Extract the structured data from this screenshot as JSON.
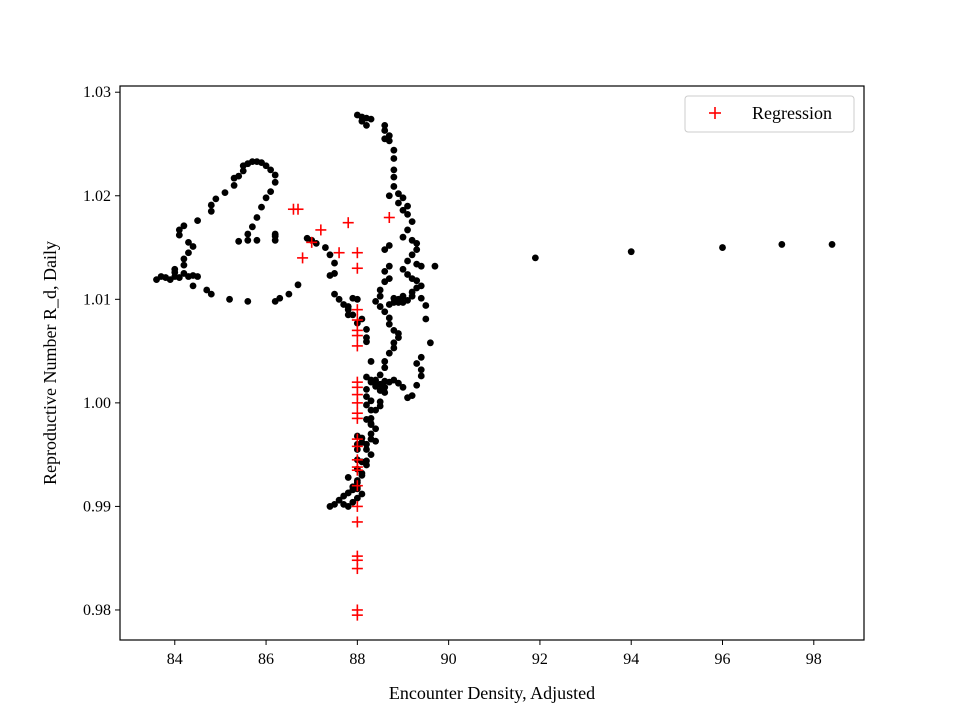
{
  "chart_data": {
    "type": "scatter",
    "title": "",
    "xlabel": "Encounter Density, Adjusted",
    "ylabel": "Reproductive Number R_d, Daily",
    "xlim": [
      82.8,
      99.1
    ],
    "ylim": [
      0.9771,
      1.0306
    ],
    "xticks": [
      84,
      86,
      88,
      90,
      92,
      94,
      96,
      98
    ],
    "yticks": [
      0.98,
      0.99,
      1.0,
      1.01,
      1.02,
      1.03
    ],
    "ytick_labels": [
      "0.98",
      "0.99",
      "1.00",
      "1.01",
      "1.02",
      "1.03"
    ],
    "grid": false,
    "legend_position": "top-right",
    "series": [
      {
        "name": "",
        "marker": "circle",
        "color": "#000000",
        "points": [
          [
            83.6,
            1.0119
          ],
          [
            83.7,
            1.0122
          ],
          [
            83.8,
            1.0121
          ],
          [
            83.9,
            1.0119
          ],
          [
            84.0,
            1.0122
          ],
          [
            84.0,
            1.0129
          ],
          [
            84.0,
            1.0126
          ],
          [
            84.1,
            1.0121
          ],
          [
            84.2,
            1.0125
          ],
          [
            84.3,
            1.0122
          ],
          [
            84.4,
            1.0123
          ],
          [
            84.5,
            1.0122
          ],
          [
            84.4,
            1.0113
          ],
          [
            84.2,
            1.0133
          ],
          [
            84.2,
            1.0139
          ],
          [
            84.3,
            1.0145
          ],
          [
            84.4,
            1.0151
          ],
          [
            84.3,
            1.0155
          ],
          [
            84.1,
            1.0162
          ],
          [
            84.1,
            1.0167
          ],
          [
            84.2,
            1.0171
          ],
          [
            84.5,
            1.0176
          ],
          [
            84.8,
            1.0185
          ],
          [
            84.8,
            1.0191
          ],
          [
            84.9,
            1.0197
          ],
          [
            85.1,
            1.0203
          ],
          [
            85.3,
            1.021
          ],
          [
            85.3,
            1.0217
          ],
          [
            85.4,
            1.0219
          ],
          [
            85.5,
            1.0224
          ],
          [
            85.5,
            1.0229
          ],
          [
            85.6,
            1.0231
          ],
          [
            85.7,
            1.0233
          ],
          [
            85.8,
            1.0233
          ],
          [
            85.9,
            1.0232
          ],
          [
            86.0,
            1.0229
          ],
          [
            86.1,
            1.0225
          ],
          [
            86.2,
            1.022
          ],
          [
            86.2,
            1.0213
          ],
          [
            86.1,
            1.0204
          ],
          [
            86.0,
            1.0198
          ],
          [
            85.9,
            1.0189
          ],
          [
            85.8,
            1.0179
          ],
          [
            85.7,
            1.017
          ],
          [
            85.6,
            1.0163
          ],
          [
            85.8,
            1.0157
          ],
          [
            85.6,
            1.0157
          ],
          [
            85.4,
            1.0156
          ],
          [
            86.2,
            1.0163
          ],
          [
            86.2,
            1.0161
          ],
          [
            86.2,
            1.0157
          ],
          [
            84.7,
            1.0109
          ],
          [
            84.8,
            1.0105
          ],
          [
            85.2,
            1.01
          ],
          [
            85.6,
            1.0098
          ],
          [
            86.2,
            1.0098
          ],
          [
            86.3,
            1.0101
          ],
          [
            86.5,
            1.0105
          ],
          [
            86.7,
            1.0114
          ],
          [
            86.9,
            1.0159
          ],
          [
            87.0,
            1.0157
          ],
          [
            87.1,
            1.0154
          ],
          [
            87.3,
            1.015
          ],
          [
            87.4,
            1.0143
          ],
          [
            87.5,
            1.0135
          ],
          [
            87.5,
            1.0125
          ],
          [
            87.4,
            1.0123
          ],
          [
            87.5,
            1.0105
          ],
          [
            87.6,
            1.01
          ],
          [
            87.7,
            1.0095
          ],
          [
            87.8,
            1.009
          ],
          [
            87.8,
            1.0085
          ],
          [
            87.9,
            1.0085
          ],
          [
            87.8,
            1.0093
          ],
          [
            87.9,
            1.0101
          ],
          [
            88.0,
            1.01
          ],
          [
            88.0,
            1.0077
          ],
          [
            88.1,
            1.0081
          ],
          [
            88.2,
            1.0071
          ],
          [
            88.2,
            1.0063
          ],
          [
            88.2,
            1.0059
          ],
          [
            88.3,
            1.004
          ],
          [
            88.2,
            1.0025
          ],
          [
            88.3,
            1.0022
          ],
          [
            88.4,
            1.0018
          ],
          [
            88.2,
            1.0013
          ],
          [
            88.2,
            1.0006
          ],
          [
            88.3,
            1.0002
          ],
          [
            88.2,
            0.9998
          ],
          [
            88.3,
            0.9993
          ],
          [
            88.2,
            0.9984
          ],
          [
            88.3,
            0.9979
          ],
          [
            88.4,
            0.9975
          ],
          [
            88.3,
            0.997
          ],
          [
            88.3,
            0.9965
          ],
          [
            88.2,
            0.996
          ],
          [
            88.2,
            0.9955
          ],
          [
            88.3,
            0.995
          ],
          [
            88.2,
            0.9944
          ],
          [
            88.1,
            0.9943
          ],
          [
            88.2,
            0.994
          ],
          [
            88.1,
            0.9932
          ],
          [
            88.0,
            0.9925
          ],
          [
            88.0,
            0.9919
          ],
          [
            87.9,
            0.9916
          ],
          [
            87.8,
            0.9913
          ],
          [
            87.7,
            0.991
          ],
          [
            87.6,
            0.9906
          ],
          [
            87.5,
            0.9902
          ],
          [
            87.4,
            0.99
          ],
          [
            87.7,
            0.9902
          ],
          [
            87.8,
            0.99
          ],
          [
            87.9,
            0.9904
          ],
          [
            88.0,
            0.9908
          ],
          [
            88.1,
            0.9912
          ],
          [
            88.0,
            0.9917
          ],
          [
            88.0,
            0.9923
          ],
          [
            88.1,
            0.993
          ],
          [
            88.0,
            0.9936
          ],
          [
            88.0,
            0.9945
          ],
          [
            88.0,
            0.9955
          ],
          [
            88.0,
            0.996
          ],
          [
            88.1,
            0.9962
          ],
          [
            88.1,
            0.9966
          ],
          [
            88.0,
            0.9968
          ],
          [
            87.8,
            0.9928
          ],
          [
            87.9,
            0.9919
          ],
          [
            88.0,
            1.0278
          ],
          [
            88.1,
            1.0276
          ],
          [
            88.2,
            1.0275
          ],
          [
            88.3,
            1.0274
          ],
          [
            88.1,
            1.0272
          ],
          [
            88.2,
            1.0268
          ],
          [
            88.6,
            1.0268
          ],
          [
            88.6,
            1.0263
          ],
          [
            88.7,
            1.0258
          ],
          [
            88.6,
            1.0255
          ],
          [
            88.7,
            1.0253
          ],
          [
            88.8,
            1.0244
          ],
          [
            88.8,
            1.0236
          ],
          [
            88.8,
            1.0225
          ],
          [
            88.8,
            1.0218
          ],
          [
            88.8,
            1.0209
          ],
          [
            88.7,
            1.02
          ],
          [
            88.9,
            1.0202
          ],
          [
            89.0,
            1.0198
          ],
          [
            88.9,
            1.0193
          ],
          [
            89.1,
            1.019
          ],
          [
            89.0,
            1.0186
          ],
          [
            89.1,
            1.0182
          ],
          [
            89.2,
            1.0175
          ],
          [
            89.1,
            1.0167
          ],
          [
            89.0,
            1.016
          ],
          [
            89.2,
            1.0157
          ],
          [
            89.3,
            1.0154
          ],
          [
            89.3,
            1.0148
          ],
          [
            89.2,
            1.0143
          ],
          [
            89.1,
            1.0137
          ],
          [
            89.3,
            1.0134
          ],
          [
            89.4,
            1.0132
          ],
          [
            89.0,
            1.0129
          ],
          [
            89.1,
            1.0124
          ],
          [
            89.2,
            1.012
          ],
          [
            89.3,
            1.0118
          ],
          [
            89.4,
            1.0113
          ],
          [
            89.2,
            1.0107
          ],
          [
            89.0,
            1.0103
          ],
          [
            88.9,
            1.01
          ],
          [
            88.8,
            1.0097
          ],
          [
            88.7,
            1.0095
          ],
          [
            88.8,
            1.0101
          ],
          [
            88.9,
            1.0097
          ],
          [
            89.0,
            1.0097
          ],
          [
            89.1,
            1.0099
          ],
          [
            89.2,
            1.0103
          ],
          [
            88.7,
            1.012
          ],
          [
            88.6,
            1.0127
          ],
          [
            88.7,
            1.0132
          ],
          [
            88.6,
            1.0148
          ],
          [
            88.7,
            1.0152
          ],
          [
            88.6,
            1.0117
          ],
          [
            88.5,
            1.0109
          ],
          [
            88.5,
            1.0103
          ],
          [
            88.4,
            1.0098
          ],
          [
            88.5,
            1.0093
          ],
          [
            88.6,
            1.0088
          ],
          [
            88.7,
            1.0082
          ],
          [
            88.7,
            1.0076
          ],
          [
            88.8,
            1.007
          ],
          [
            88.9,
            1.0067
          ],
          [
            88.9,
            1.0063
          ],
          [
            88.8,
            1.0058
          ],
          [
            88.8,
            1.0053
          ],
          [
            88.7,
            1.0048
          ],
          [
            88.6,
            1.004
          ],
          [
            88.6,
            1.0034
          ],
          [
            88.5,
            1.0027
          ],
          [
            88.6,
            1.0021
          ],
          [
            88.6,
            1.0015
          ],
          [
            88.5,
            1.0012
          ],
          [
            88.4,
            1.0016
          ],
          [
            88.5,
            1.0018
          ],
          [
            88.3,
            1.002
          ],
          [
            88.4,
            1.0022
          ],
          [
            88.6,
            1.001
          ],
          [
            88.5,
            1.0001
          ],
          [
            88.5,
            0.9997
          ],
          [
            88.4,
            0.9993
          ],
          [
            88.3,
            0.9985
          ],
          [
            88.3,
            0.998
          ],
          [
            88.4,
            0.9963
          ],
          [
            88.7,
            1.002
          ],
          [
            88.8,
            1.0022
          ],
          [
            88.9,
            1.0019
          ],
          [
            89.0,
            1.0015
          ],
          [
            89.1,
            1.0005
          ],
          [
            89.2,
            1.0007
          ],
          [
            89.3,
            1.0017
          ],
          [
            89.4,
            1.0026
          ],
          [
            89.4,
            1.0032
          ],
          [
            89.3,
            1.0038
          ],
          [
            89.4,
            1.0044
          ],
          [
            89.6,
            1.0058
          ],
          [
            89.5,
            1.0081
          ],
          [
            89.5,
            1.0094
          ],
          [
            89.4,
            1.0101
          ],
          [
            89.3,
            1.0111
          ],
          [
            89.7,
            1.0132
          ],
          [
            91.9,
            1.014
          ],
          [
            94.0,
            1.0146
          ],
          [
            96.0,
            1.015
          ],
          [
            97.3,
            1.0153
          ],
          [
            98.4,
            1.0153
          ]
        ]
      },
      {
        "name": "Regression",
        "marker": "plus",
        "color": "#ff0000",
        "points": [
          [
            86.6,
            1.0187
          ],
          [
            86.7,
            1.0187
          ],
          [
            86.8,
            1.014
          ],
          [
            87.0,
            1.0155
          ],
          [
            87.2,
            1.0167
          ],
          [
            87.6,
            1.0145
          ],
          [
            87.8,
            1.0174
          ],
          [
            88.0,
            1.0145
          ],
          [
            88.0,
            1.013
          ],
          [
            88.7,
            1.0179
          ],
          [
            88.0,
            1.009
          ],
          [
            88.0,
            1.008
          ],
          [
            88.0,
            1.007
          ],
          [
            88.0,
            1.0065
          ],
          [
            88.0,
            1.0055
          ],
          [
            88.0,
            1.002
          ],
          [
            88.0,
            1.0015
          ],
          [
            88.0,
            1.0008
          ],
          [
            88.0,
            1.0
          ],
          [
            88.0,
            0.999
          ],
          [
            88.0,
            0.9985
          ],
          [
            88.0,
            0.9965
          ],
          [
            88.0,
            0.9958
          ],
          [
            88.0,
            0.9945
          ],
          [
            88.0,
            0.9938
          ],
          [
            88.0,
            0.9935
          ],
          [
            88.0,
            0.992
          ],
          [
            88.0,
            0.99
          ],
          [
            88.0,
            0.9885
          ],
          [
            88.0,
            0.9852
          ],
          [
            88.0,
            0.9848
          ],
          [
            88.0,
            0.984
          ],
          [
            88.0,
            0.98
          ],
          [
            88.0,
            0.9795
          ]
        ]
      }
    ]
  }
}
